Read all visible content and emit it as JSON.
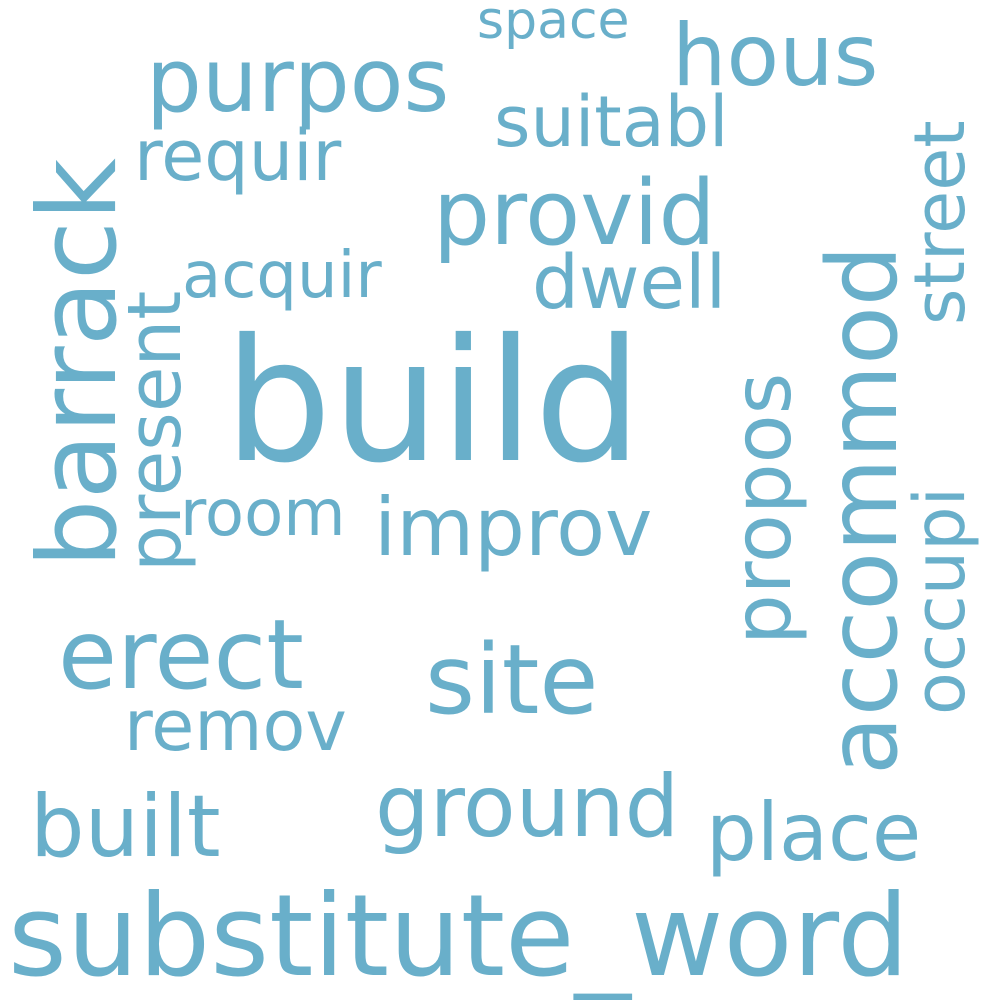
{
  "word_cloud": {
    "color": "#69afca",
    "words": [
      {
        "text": "build"
      },
      {
        "text": "substitute_word"
      },
      {
        "text": "barrack"
      },
      {
        "text": "accommod"
      },
      {
        "text": "site"
      },
      {
        "text": "erect"
      },
      {
        "text": "provid"
      },
      {
        "text": "purpos"
      },
      {
        "text": "hous"
      },
      {
        "text": "ground"
      },
      {
        "text": "built"
      },
      {
        "text": "improv"
      },
      {
        "text": "propos"
      },
      {
        "text": "place"
      },
      {
        "text": "present"
      },
      {
        "text": "dwell"
      },
      {
        "text": "street"
      },
      {
        "text": "suitabl"
      },
      {
        "text": "requir"
      },
      {
        "text": "remov"
      },
      {
        "text": "occupi"
      },
      {
        "text": "acquir"
      },
      {
        "text": "room"
      },
      {
        "text": "space"
      }
    ]
  }
}
